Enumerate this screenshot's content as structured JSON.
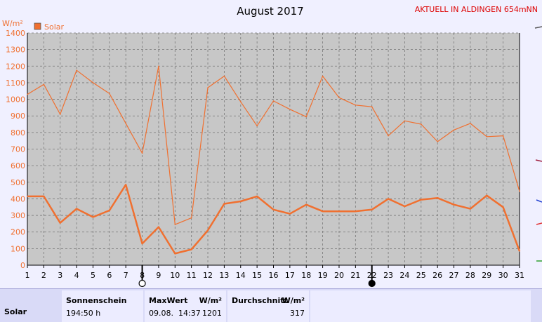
{
  "header": {
    "title": "August 2017",
    "station": "AKTUELL IN ALDINGEN 654mNN",
    "unit": "W/m²"
  },
  "legend": {
    "label": "Solar",
    "color": "#f07030"
  },
  "colors": {
    "line": "#f07030",
    "station": "#dd0000",
    "grid": "#888888"
  },
  "chart_data": {
    "type": "line",
    "title": "August 2017",
    "ylabel": "W/m²",
    "ylim": [
      0,
      1400
    ],
    "yticks": [
      0,
      100,
      200,
      300,
      400,
      500,
      600,
      700,
      800,
      900,
      1000,
      1100,
      1200,
      1300,
      1400
    ],
    "x": [
      1,
      2,
      3,
      4,
      5,
      6,
      7,
      8,
      9,
      10,
      11,
      12,
      13,
      14,
      15,
      16,
      17,
      18,
      19,
      20,
      21,
      22,
      23,
      24,
      25,
      26,
      27,
      28,
      29,
      30,
      31
    ],
    "grid": true,
    "legend": "top-left",
    "series": [
      {
        "name": "Solar",
        "style": "max",
        "values": [
          1030,
          1090,
          910,
          1175,
          1100,
          1035,
          855,
          675,
          1200,
          245,
          285,
          1070,
          1140,
          985,
          840,
          990,
          940,
          895,
          1140,
          1010,
          965,
          955,
          780,
          870,
          850,
          745,
          815,
          855,
          775,
          780,
          445
        ]
      },
      {
        "name": "Solar",
        "style": "average",
        "values": [
          415,
          415,
          255,
          340,
          290,
          330,
          485,
          130,
          230,
          70,
          95,
          210,
          370,
          385,
          415,
          335,
          310,
          365,
          325,
          325,
          325,
          335,
          400,
          355,
          395,
          405,
          365,
          340,
          420,
          350,
          85
        ]
      }
    ],
    "markers": [
      {
        "day": 8,
        "symbol": "full-moon"
      },
      {
        "day": 22,
        "symbol": "new-moon"
      }
    ]
  },
  "footer": {
    "row_label": "Solar",
    "sonnenschein": {
      "header": "Sonnenschein",
      "value": "194:50 h"
    },
    "maxwert": {
      "header": "MaxWert",
      "unit": "W/m²",
      "date": "09.08.",
      "time": "14:37",
      "value": "1201"
    },
    "durchschnitt": {
      "header": "Durchschnitt",
      "unit": "W/m²",
      "value": "317"
    }
  }
}
